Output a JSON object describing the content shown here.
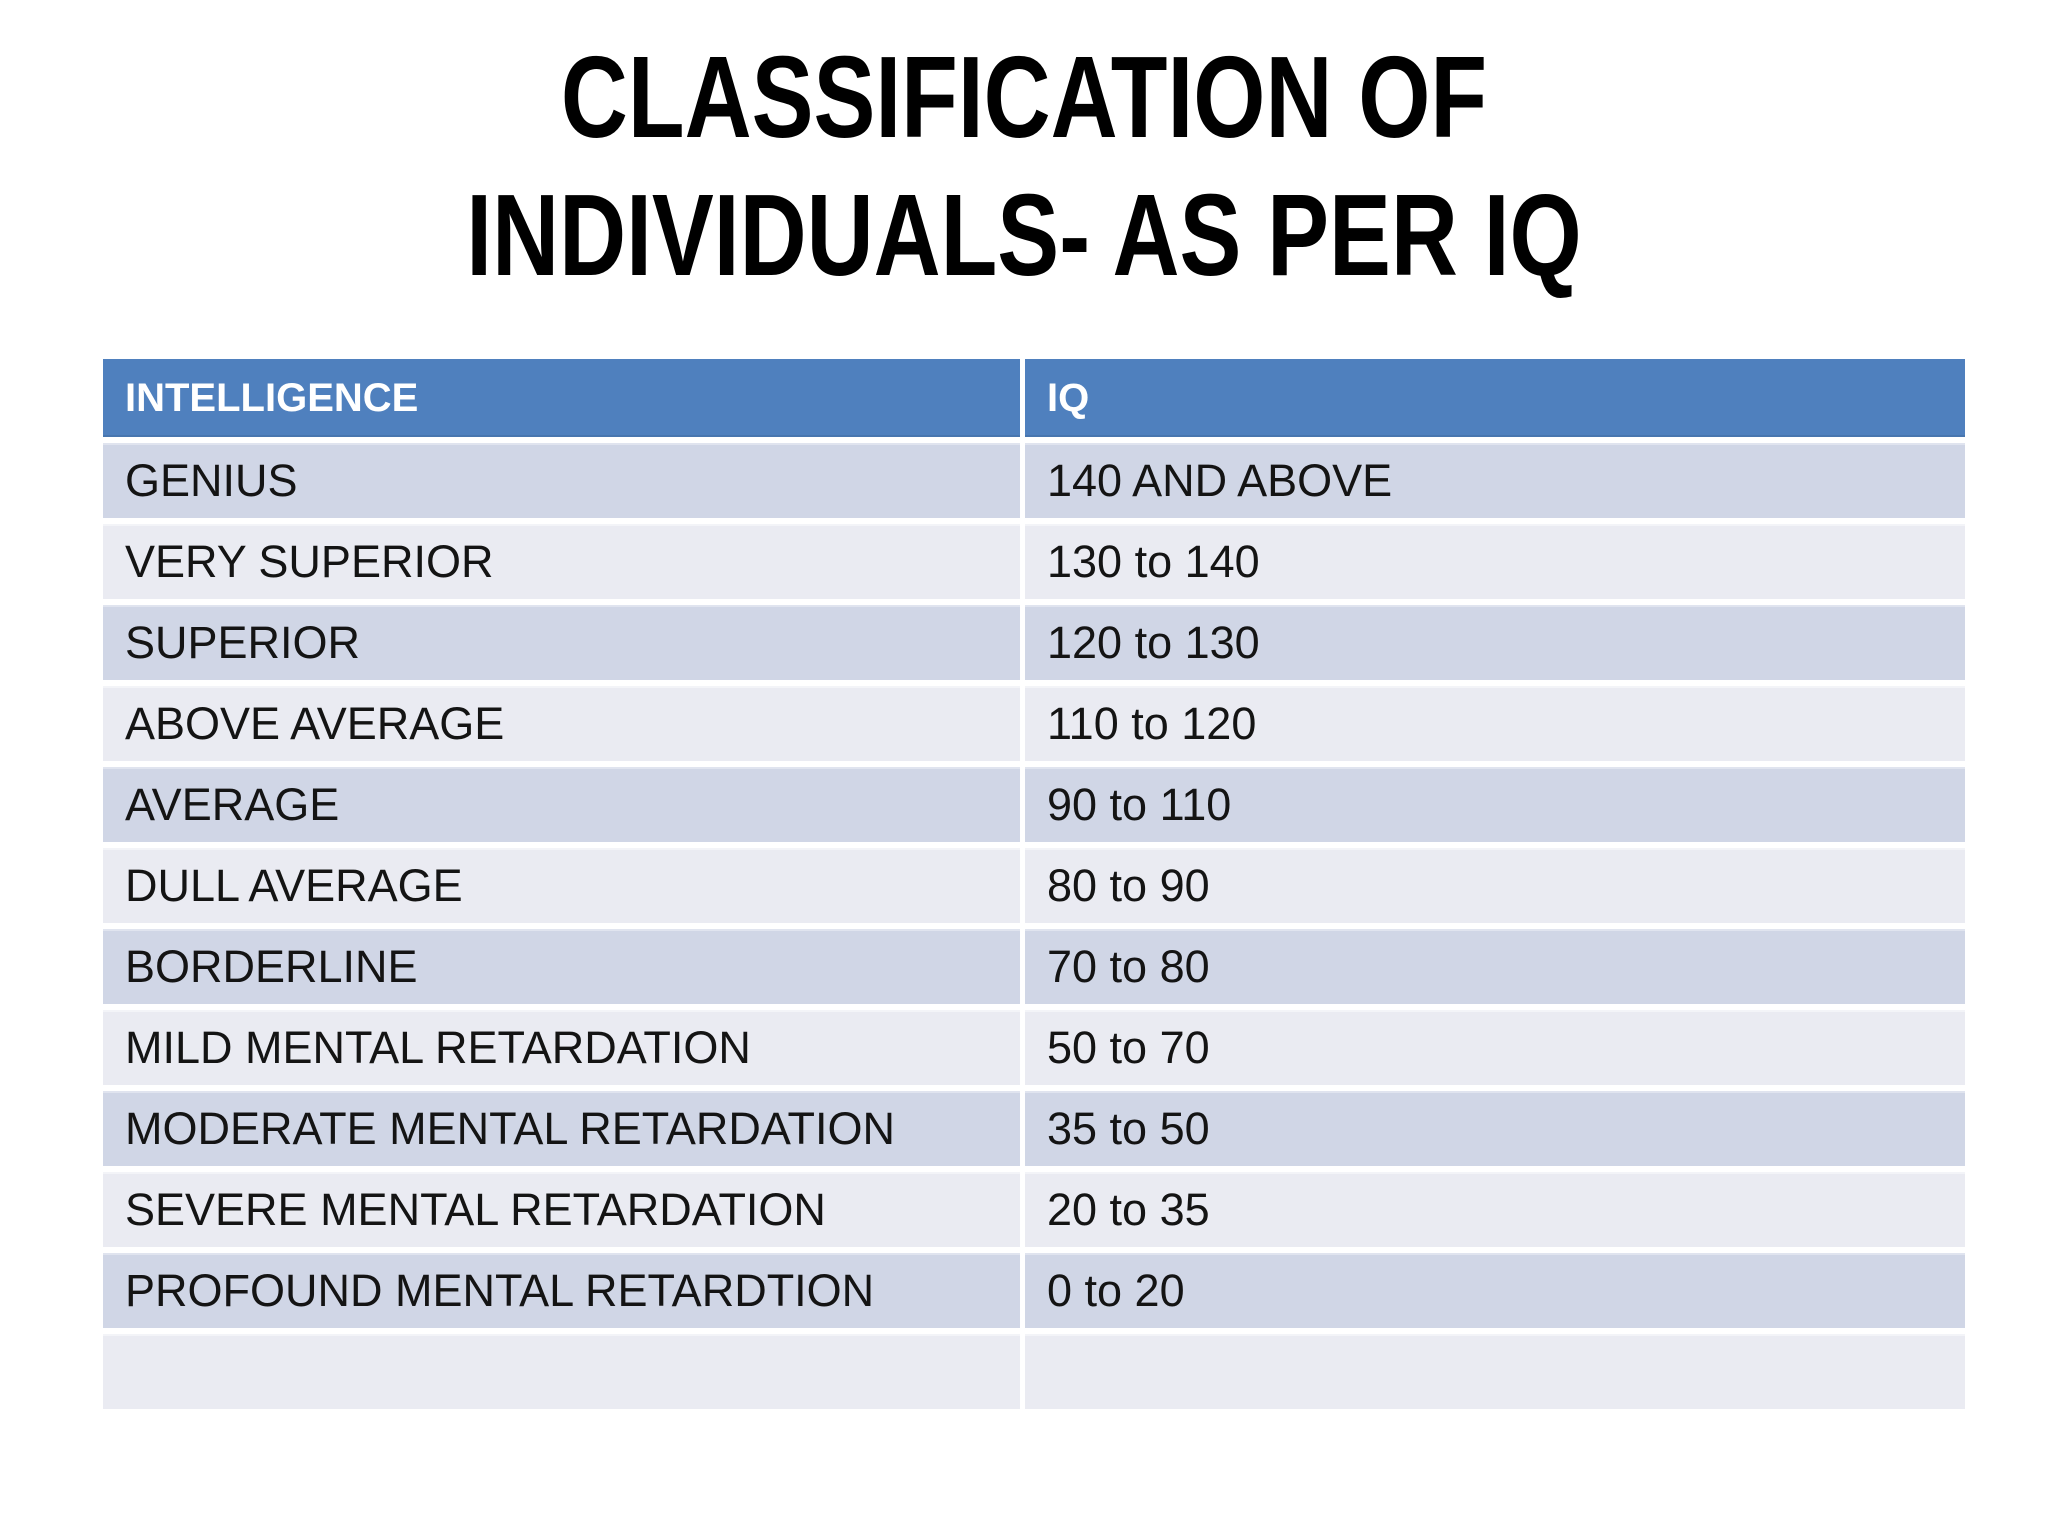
{
  "slide": {
    "title_line1": "CLASSIFICATION OF",
    "title_line2": "INDIVIDUALS- AS PER IQ",
    "background_color": "#FFFFFF",
    "title_color": "#000000"
  },
  "table": {
    "headers": {
      "intelligence": "INTELLIGENCE",
      "iq": "IQ"
    },
    "rows": [
      {
        "intelligence": "GENIUS",
        "iq": "140 AND ABOVE"
      },
      {
        "intelligence": "VERY SUPERIOR",
        "iq": "130 to 140"
      },
      {
        "intelligence": "SUPERIOR",
        "iq": "120 to 130"
      },
      {
        "intelligence": "ABOVE AVERAGE",
        "iq": "110 to 120"
      },
      {
        "intelligence": "AVERAGE",
        "iq": "90 to 110"
      },
      {
        "intelligence": "DULL AVERAGE",
        "iq": "80 to 90"
      },
      {
        "intelligence": "BORDERLINE",
        "iq": "70 to 80"
      },
      {
        "intelligence": "MILD MENTAL RETARDATION",
        "iq": "50 to 70"
      },
      {
        "intelligence": "MODERATE MENTAL RETARDATION",
        "iq": "35 to 50"
      },
      {
        "intelligence": "SEVERE MENTAL RETARDATION",
        "iq": "20 to 35"
      },
      {
        "intelligence": "PROFOUND MENTAL RETARDTION",
        "iq": "0 to 20"
      },
      {
        "intelligence": "",
        "iq": ""
      }
    ],
    "colors": {
      "header_bg": "#4F80BE",
      "header_text": "#FFFFFF",
      "row_dark": "#D0D6E6",
      "row_light": "#EAEBF2",
      "cell_text": "#141414",
      "divider": "#FFFFFF"
    }
  }
}
